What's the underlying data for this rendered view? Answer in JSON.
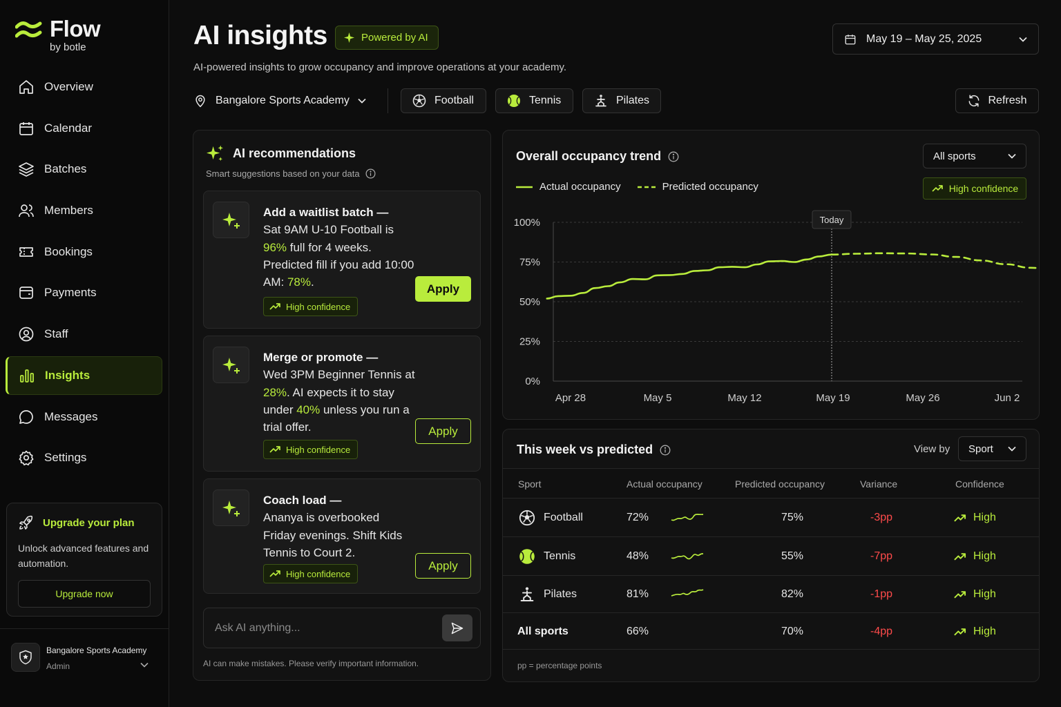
{
  "brand": {
    "name": "Flow",
    "sub": "by botle"
  },
  "nav": [
    {
      "label": "Overview",
      "icon": "home-icon"
    },
    {
      "label": "Calendar",
      "icon": "calendar-icon"
    },
    {
      "label": "Batches",
      "icon": "layers-icon"
    },
    {
      "label": "Members",
      "icon": "users-icon"
    },
    {
      "label": "Bookings",
      "icon": "ticket-icon"
    },
    {
      "label": "Payments",
      "icon": "wallet-icon"
    },
    {
      "label": "Staff",
      "icon": "user-circle-icon"
    },
    {
      "label": "Insights",
      "icon": "bar-chart-icon",
      "active": true
    },
    {
      "label": "Messages",
      "icon": "message-icon"
    },
    {
      "label": "Settings",
      "icon": "gear-icon"
    }
  ],
  "upgrade": {
    "title": "Upgrade your plan",
    "desc": "Unlock advanced features and automation.",
    "button": "Upgrade now"
  },
  "org": {
    "name": "Bangalore Sports Academy",
    "role": "Admin"
  },
  "header": {
    "title": "AI insights",
    "badge": "Powered by AI",
    "subtitle": "AI-powered insights to grow occupancy and improve operations at your academy.",
    "date_range": "May 19 – May 25, 2025",
    "location": "Bangalore Sports Academy",
    "sports": [
      "Football",
      "Tennis",
      "Pilates"
    ],
    "refresh": "Refresh"
  },
  "recommendations": {
    "title": "AI recommendations",
    "subtitle": "Smart suggestions based on your data",
    "cards": [
      {
        "title": "Add a waitlist batch —",
        "parts": [
          "Sat 9AM U-10 Football is ",
          "96%",
          " full for 4 weeks. Predicted fill if you add 10:00 AM: ",
          "78%",
          "."
        ],
        "confidence": "High confidence",
        "apply": "Apply"
      },
      {
        "title": "Merge or promote —",
        "parts": [
          "Wed 3PM Beginner Tennis at ",
          "28%",
          ". AI expects it to stay under ",
          "40%",
          " unless you run a trial offer."
        ],
        "confidence": "High confidence",
        "apply": "Apply"
      },
      {
        "title": "Coach load —",
        "parts": [
          "Ananya is overbooked Friday evenings. Shift Kids Tennis to Court 2."
        ],
        "confidence": "High confidence",
        "apply": "Apply"
      }
    ],
    "ask_placeholder": "Ask AI anything...",
    "disclaimer": "AI can make mistakes. Please verify important information."
  },
  "trend": {
    "title": "Overall occupancy trend",
    "filter": "All sports",
    "legend_actual": "Actual occupancy",
    "legend_predicted": "Predicted occupancy",
    "confidence": "High confidence",
    "today_label": "Today"
  },
  "chart_data": {
    "type": "line",
    "x_ticks": [
      "Apr 28",
      "May 5",
      "May 12",
      "May 19",
      "May 26",
      "Jun 2"
    ],
    "y_ticks": [
      "0%",
      "25%",
      "50%",
      "75%",
      "100%"
    ],
    "ylim": [
      0,
      100
    ],
    "today_day": 21,
    "series": [
      {
        "name": "Actual occupancy",
        "style": "solid",
        "points": [
          [
            -1.9,
            52
          ],
          [
            -1,
            53.5
          ],
          [
            0,
            53.8
          ],
          [
            1,
            55.5
          ],
          [
            2,
            58.6
          ],
          [
            3,
            59.8
          ],
          [
            4,
            62.2
          ],
          [
            5,
            64.3
          ],
          [
            6,
            64.1
          ],
          [
            7,
            66.6
          ],
          [
            8,
            66.8
          ],
          [
            9,
            67.5
          ],
          [
            10,
            69.4
          ],
          [
            11,
            69.8
          ],
          [
            12,
            71.7
          ],
          [
            13,
            72
          ],
          [
            14,
            71.7
          ],
          [
            15,
            73.5
          ],
          [
            16,
            75.4
          ],
          [
            17,
            75.6
          ],
          [
            18,
            75
          ],
          [
            19,
            76.6
          ],
          [
            20,
            78.5
          ],
          [
            21,
            79.7
          ]
        ]
      },
      {
        "name": "Predicted occupancy",
        "style": "dashed",
        "points": [
          [
            21,
            79.7
          ],
          [
            23,
            80.2
          ],
          [
            25,
            80.5
          ],
          [
            27,
            80.4
          ],
          [
            29,
            79.8
          ],
          [
            31,
            78.2
          ],
          [
            33,
            76
          ],
          [
            35,
            73.6
          ],
          [
            37,
            71.4
          ],
          [
            39,
            69.4
          ],
          [
            41,
            67.4
          ],
          [
            42.9,
            66.3
          ]
        ]
      }
    ]
  },
  "table": {
    "title": "This week vs predicted",
    "viewby_label": "View by",
    "viewby_value": "Sport",
    "headers": [
      "Sport",
      "Actual occupancy",
      "Predicted occupancy",
      "Variance",
      "Confidence"
    ],
    "rows": [
      {
        "sport": "Football",
        "icon": "football-icon",
        "actual": "72%",
        "predicted": "75%",
        "variance": "-3pp",
        "confidence": "High"
      },
      {
        "sport": "Tennis",
        "icon": "tennis-ball-icon",
        "actual": "48%",
        "predicted": "55%",
        "variance": "-7pp",
        "confidence": "High"
      },
      {
        "sport": "Pilates",
        "icon": "pilates-icon",
        "actual": "81%",
        "predicted": "82%",
        "variance": "-1pp",
        "confidence": "High"
      }
    ],
    "total": {
      "sport": "All sports",
      "actual": "66%",
      "predicted": "70%",
      "variance": "-4pp",
      "confidence": "High"
    },
    "footnote": "pp = percentage points"
  },
  "colors": {
    "accent": "#b9ec3c",
    "negative": "#ff4b4b",
    "background": "#0d0d0d"
  }
}
